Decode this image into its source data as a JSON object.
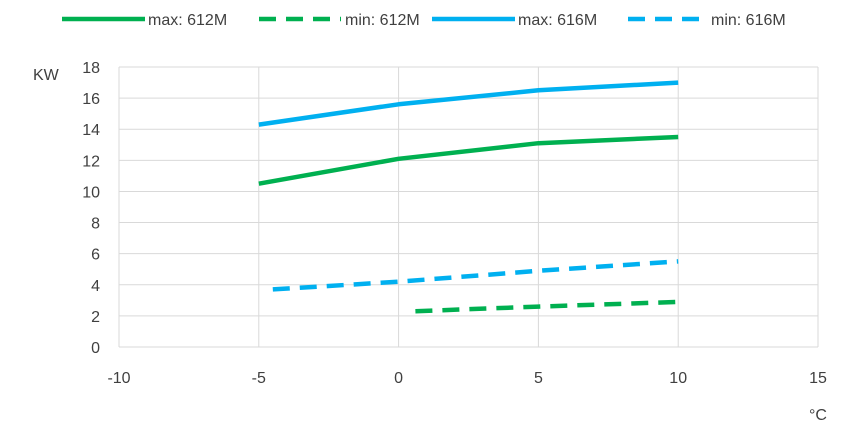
{
  "chart_data": {
    "type": "line",
    "title": "",
    "xlabel": "°C",
    "ylabel": "KW",
    "xlim": [
      -10,
      15
    ],
    "ylim": [
      0,
      18
    ],
    "x_ticks": [
      "-10",
      "-5",
      "0",
      "5",
      "10",
      "15"
    ],
    "y_ticks": [
      "0",
      "2",
      "4",
      "6",
      "8",
      "10",
      "12",
      "14",
      "16",
      "18"
    ],
    "grid": true,
    "legend_position": "top",
    "series": [
      {
        "name": "max: 612M",
        "color": "#00b050",
        "dash": "solid",
        "points": [
          [
            -5,
            10.5
          ],
          [
            0,
            12.1
          ],
          [
            5,
            13.1
          ],
          [
            10,
            13.5
          ]
        ]
      },
      {
        "name": "min: 612M",
        "color": "#00b050",
        "dash": "dashed",
        "points": [
          [
            0.6,
            2.3
          ],
          [
            5,
            2.6
          ],
          [
            10,
            2.9
          ]
        ]
      },
      {
        "name": "max: 616M",
        "color": "#00b0f0",
        "dash": "solid",
        "points": [
          [
            -5,
            14.3
          ],
          [
            0,
            15.6
          ],
          [
            5,
            16.5
          ],
          [
            10,
            17.0
          ]
        ]
      },
      {
        "name": "min: 616M",
        "color": "#00b0f0",
        "dash": "dashed",
        "points": [
          [
            -4.5,
            3.7
          ],
          [
            0,
            4.2
          ],
          [
            5,
            4.9
          ],
          [
            10,
            5.5
          ]
        ]
      }
    ]
  }
}
